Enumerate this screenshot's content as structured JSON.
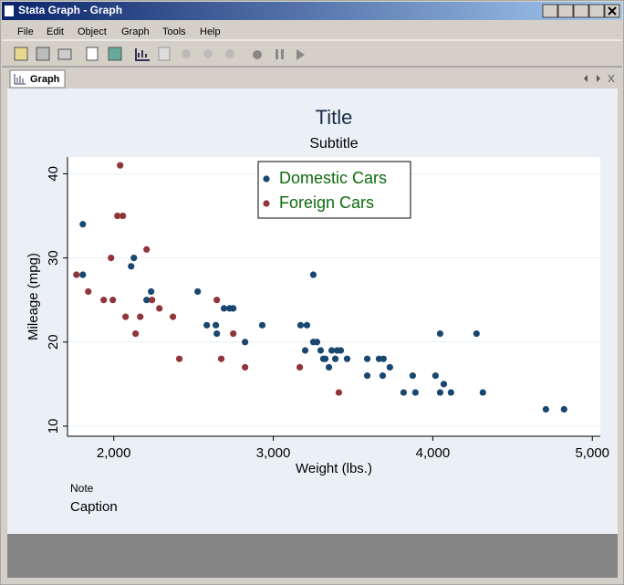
{
  "window": {
    "title": "Stata Graph - Graph"
  },
  "menu": [
    "File",
    "Edit",
    "Object",
    "Graph",
    "Tools",
    "Help"
  ],
  "tab": "Graph",
  "chart_data": {
    "type": "scatter",
    "title": "Title",
    "subtitle": "Subtitle",
    "x_label": "Weight (lbs.)",
    "y_label": "Mileage (mpg)",
    "note": "Note",
    "caption": "Caption",
    "xlim": [
      1710,
      5050
    ],
    "ylim": [
      8.8,
      42
    ],
    "xticks": [
      {
        "value": 2000,
        "label": "2,000"
      },
      {
        "value": 3000,
        "label": "3,000"
      },
      {
        "value": 4000,
        "label": "4,000"
      },
      {
        "value": 5000,
        "label": "5,000"
      }
    ],
    "yticks": [
      10,
      20,
      30,
      40
    ],
    "grid": true,
    "legend": "top",
    "series": [
      {
        "name": "Domestic Cars",
        "color": "#1a476f",
        "x": [
          1806,
          1806,
          2126,
          2109,
          2206,
          2234,
          2526,
          2583,
          2640,
          2646,
          2691,
          2726,
          2749,
          2823,
          2931,
          3171,
          3211,
          3200,
          3251,
          3274,
          3251,
          3297,
          3314,
          3326,
          3349,
          3366,
          3400,
          3423,
          3389,
          3463,
          3589,
          3589,
          3663,
          3691,
          3686,
          3731,
          3817,
          3874,
          3891,
          4017,
          4046,
          4046,
          4069,
          4114,
          4274,
          4314,
          4709,
          4823
        ],
        "values": [
          34,
          28,
          30,
          29,
          25,
          26,
          26,
          22,
          22,
          21,
          24,
          24,
          24,
          20,
          22,
          22,
          22,
          19,
          20,
          20,
          28,
          19,
          18,
          18,
          17,
          19,
          19,
          19,
          18,
          18,
          18,
          16,
          18,
          18,
          16,
          17,
          14,
          16,
          14,
          16,
          21,
          14,
          15,
          14,
          21,
          14,
          12,
          12
        ]
      },
      {
        "name": "Foreign Cars",
        "color": "#90353b",
        "x": [
          1766,
          1840,
          1937,
          1994,
          1983,
          2023,
          2057,
          2040,
          2074,
          2137,
          2166,
          2206,
          2240,
          2286,
          2371,
          2411,
          2646,
          2674,
          2749,
          2823,
          3166,
          3411
        ],
        "values": [
          28,
          26,
          25,
          25,
          30,
          35,
          35,
          41,
          23,
          21,
          23,
          31,
          25,
          24,
          23,
          18,
          25,
          18,
          21,
          17,
          17,
          14
        ]
      }
    ]
  }
}
